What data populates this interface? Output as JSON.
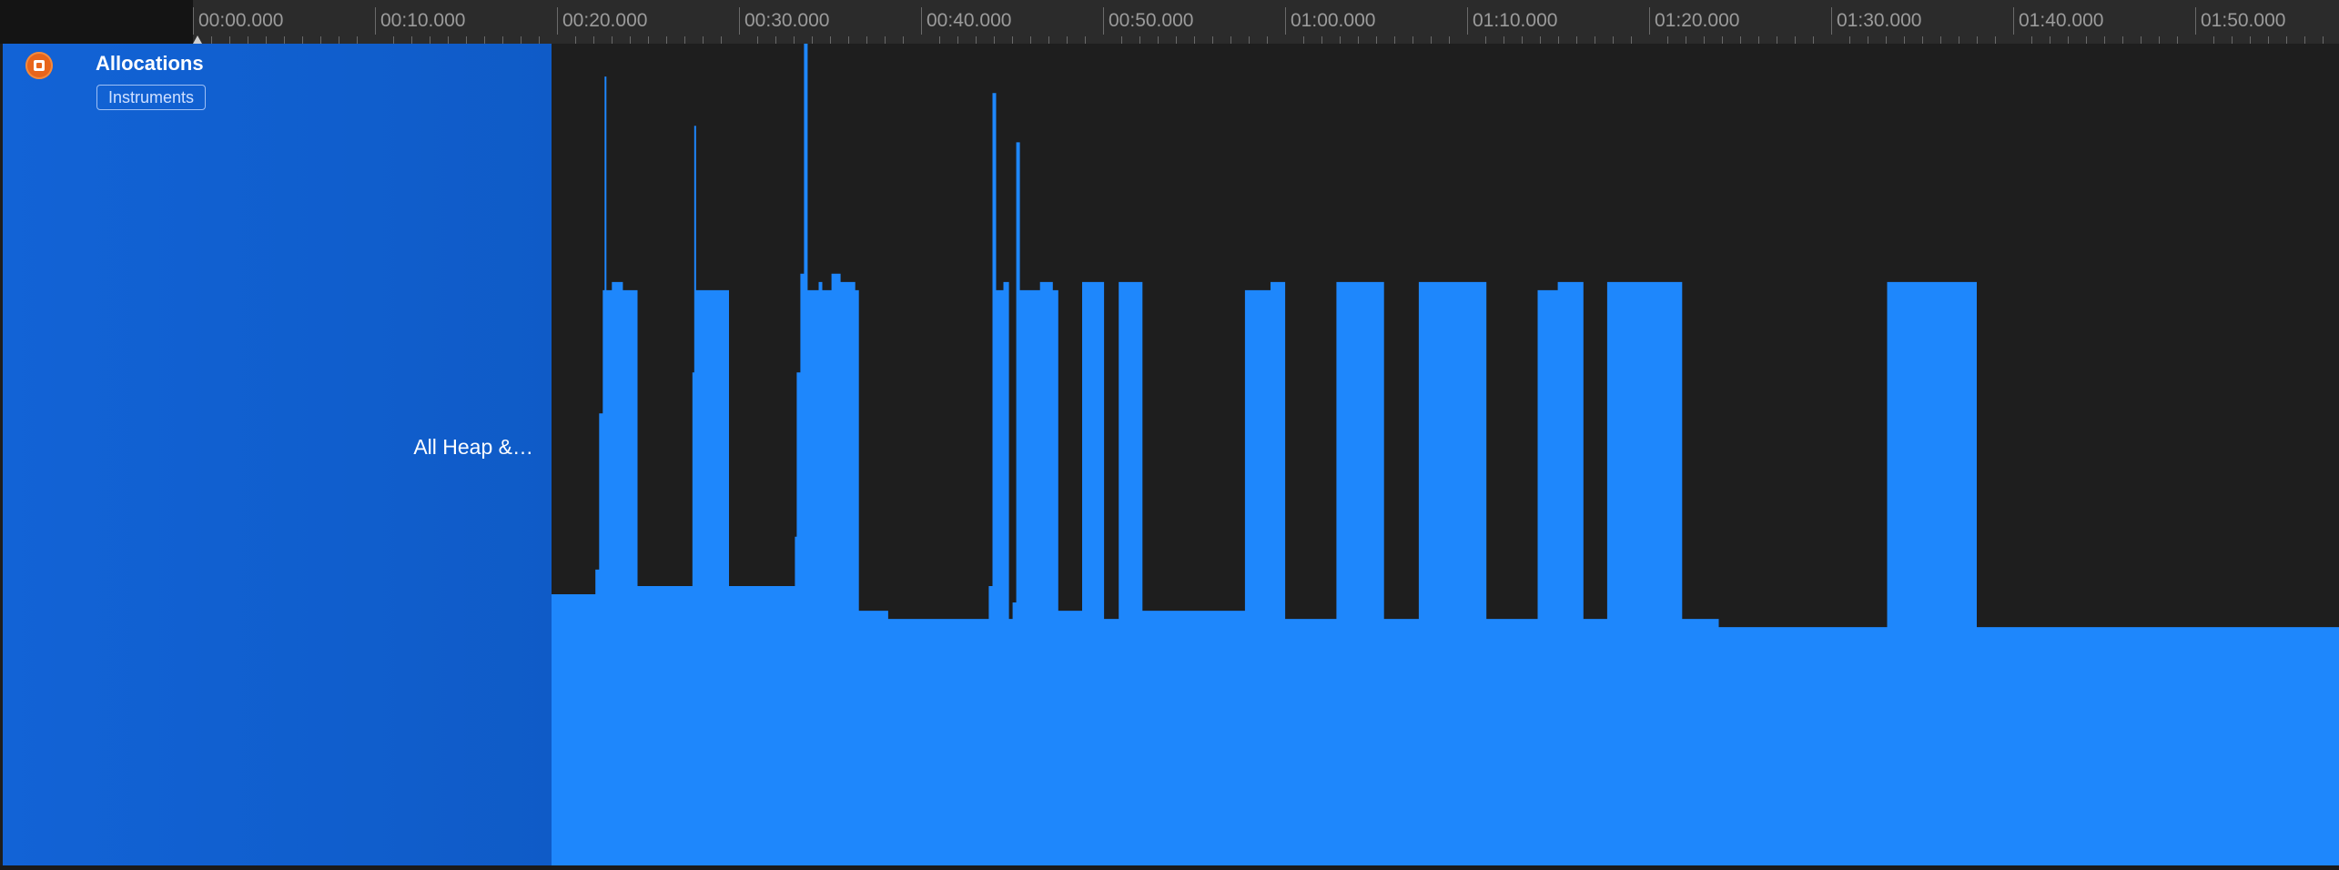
{
  "ruler": {
    "tick_labels": [
      "00:00.000",
      "00:10.000",
      "00:20.000",
      "00:30.000",
      "00:40.000",
      "00:50.000",
      "01:00.000",
      "01:10.000",
      "01:20.000",
      "01:30.000",
      "01:40.000",
      "01:50.000"
    ]
  },
  "track": {
    "instrument_name": "Allocations",
    "badge": "Instruments",
    "series_label": "All Heap &…",
    "icon": "allocations-icon"
  },
  "colors": {
    "graph_fill": "#1e87fc",
    "header_blue": "#1263d6",
    "instrument_orange": "#e8651b"
  },
  "chart_data": {
    "type": "area",
    "x_unit": "seconds",
    "xlim": [
      19.6,
      117.3
    ],
    "series": [
      {
        "points": [
          [
            19.6,
            0.33
          ],
          [
            21.9,
            0.33
          ],
          [
            22.0,
            0.36
          ],
          [
            22.2,
            0.55
          ],
          [
            22.4,
            0.7
          ],
          [
            22.5,
            0.96
          ],
          [
            22.6,
            0.7
          ],
          [
            22.9,
            0.71
          ],
          [
            23.5,
            0.7
          ],
          [
            24.2,
            0.7
          ],
          [
            24.3,
            0.34
          ],
          [
            27.2,
            0.34
          ],
          [
            27.3,
            0.6
          ],
          [
            27.4,
            0.9
          ],
          [
            27.5,
            0.7
          ],
          [
            29.2,
            0.7
          ],
          [
            29.3,
            0.34
          ],
          [
            32.7,
            0.34
          ],
          [
            32.9,
            0.4
          ],
          [
            33.0,
            0.6
          ],
          [
            33.2,
            0.72
          ],
          [
            33.4,
            1.0
          ],
          [
            33.6,
            0.7
          ],
          [
            34.2,
            0.71
          ],
          [
            34.4,
            0.7
          ],
          [
            34.9,
            0.72
          ],
          [
            35.4,
            0.71
          ],
          [
            36.2,
            0.7
          ],
          [
            36.4,
            0.31
          ],
          [
            38.0,
            0.3
          ],
          [
            43.5,
            0.34
          ],
          [
            43.7,
            0.94
          ],
          [
            43.9,
            0.7
          ],
          [
            44.3,
            0.71
          ],
          [
            44.6,
            0.3
          ],
          [
            44.8,
            0.32
          ],
          [
            45.0,
            0.88
          ],
          [
            45.2,
            0.7
          ],
          [
            46.3,
            0.71
          ],
          [
            47.0,
            0.7
          ],
          [
            47.3,
            0.31
          ],
          [
            48.3,
            0.31
          ],
          [
            48.6,
            0.71
          ],
          [
            49.6,
            0.71
          ],
          [
            49.8,
            0.3
          ],
          [
            50.4,
            0.3
          ],
          [
            50.6,
            0.71
          ],
          [
            51.7,
            0.71
          ],
          [
            51.9,
            0.31
          ],
          [
            55.0,
            0.31
          ],
          [
            57.1,
            0.31
          ],
          [
            57.5,
            0.7
          ],
          [
            58.9,
            0.71
          ],
          [
            59.5,
            0.71
          ],
          [
            59.7,
            0.3
          ],
          [
            61.9,
            0.3
          ],
          [
            62.5,
            0.71
          ],
          [
            64.9,
            0.71
          ],
          [
            65.1,
            0.3
          ],
          [
            66.5,
            0.3
          ],
          [
            67.0,
            0.71
          ],
          [
            70.5,
            0.71
          ],
          [
            70.7,
            0.3
          ],
          [
            71.0,
            0.3
          ],
          [
            73.2,
            0.3
          ],
          [
            73.5,
            0.7
          ],
          [
            74.6,
            0.71
          ],
          [
            75.9,
            0.71
          ],
          [
            76.0,
            0.3
          ],
          [
            77.0,
            0.3
          ],
          [
            77.3,
            0.71
          ],
          [
            81.2,
            0.71
          ],
          [
            81.4,
            0.3
          ],
          [
            83.0,
            0.3
          ],
          [
            83.4,
            0.29
          ],
          [
            92.4,
            0.29
          ],
          [
            92.6,
            0.71
          ],
          [
            95.3,
            0.71
          ],
          [
            97.3,
            0.71
          ],
          [
            97.5,
            0.29
          ],
          [
            117.3,
            0.29
          ]
        ]
      }
    ]
  }
}
